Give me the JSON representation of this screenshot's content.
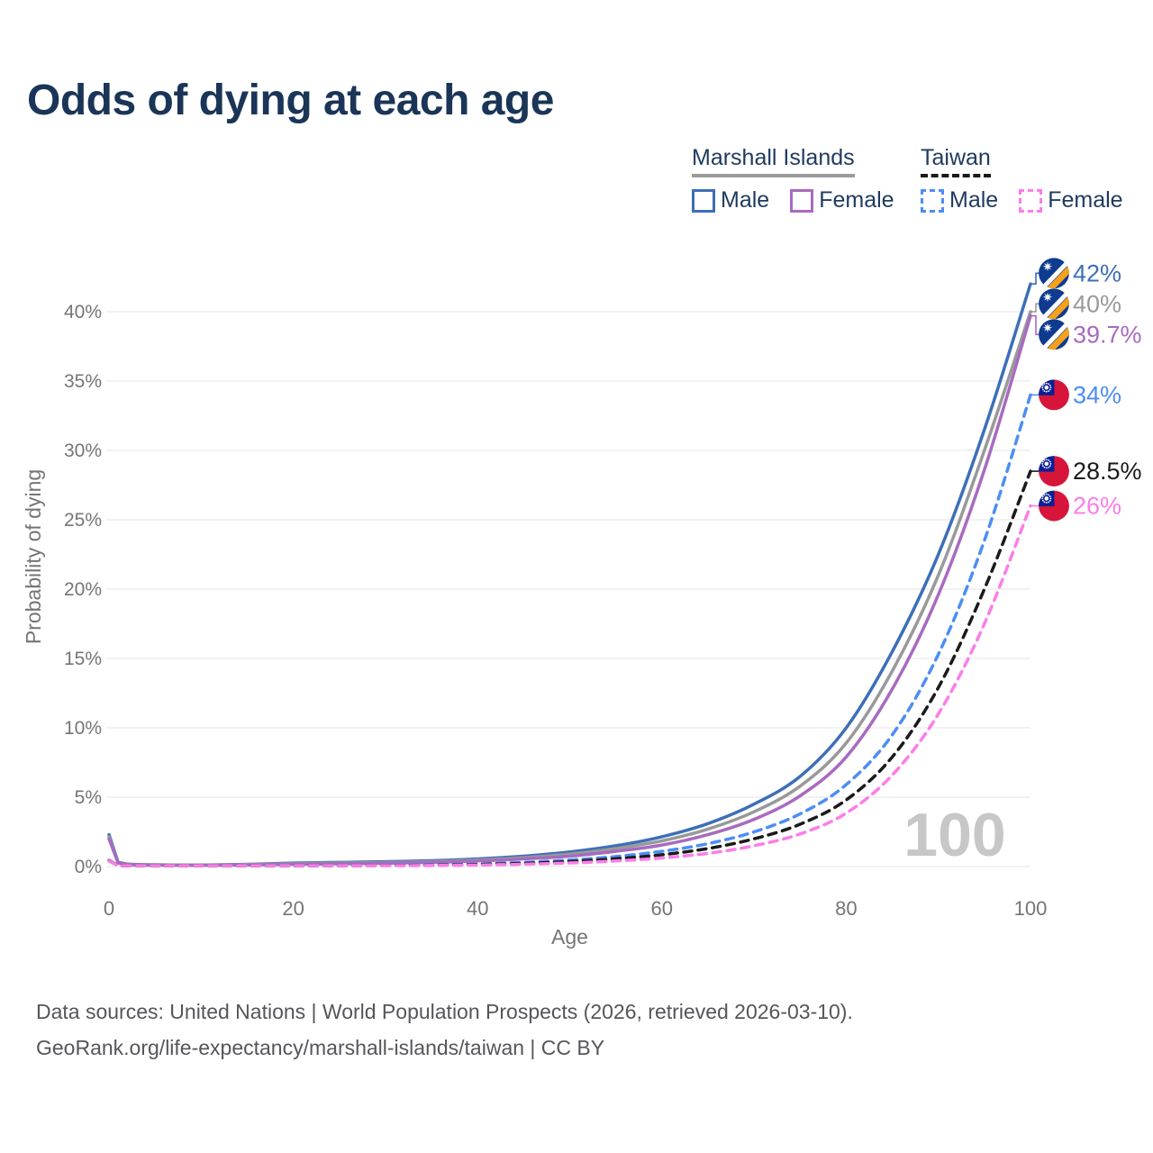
{
  "title": "Odds of dying at each age",
  "legend": {
    "marshall_islands": {
      "name": "Marshall Islands",
      "male": "Male",
      "female": "Female"
    },
    "taiwan": {
      "name": "Taiwan",
      "male": "Male",
      "female": "Female"
    }
  },
  "watermark_age": "100",
  "colors": {
    "title_text": "#1a3557",
    "legend_text": "#1f3a5f",
    "axis_text": "#757575",
    "grid": "#e9e9e9",
    "watermark": "#c7c7c7",
    "footer_text": "#55565a",
    "legend_underline_mi": "#9b9b9b",
    "legend_underline_tw": "#1a1a1a",
    "mh_flag_blue": "#0d3b8f",
    "mh_flag_orange": "#f5a11c",
    "tw_flag_red": "#d7153a",
    "tw_flag_blue": "#0a2096"
  },
  "chart_data": {
    "type": "line",
    "title": "Odds of dying at each age",
    "xlabel": "Age",
    "ylabel": "Probability of dying",
    "xlim": [
      0,
      100
    ],
    "ylim_pct": [
      0,
      43
    ],
    "x_ticks": [
      0,
      20,
      40,
      60,
      80,
      100
    ],
    "y_ticks_pct": [
      0,
      5,
      10,
      15,
      20,
      25,
      30,
      35,
      40
    ],
    "grid": true,
    "legend_position": "top-right",
    "x": [
      0,
      1,
      2,
      3,
      5,
      10,
      15,
      20,
      25,
      30,
      35,
      40,
      45,
      50,
      55,
      60,
      65,
      70,
      75,
      80,
      85,
      90,
      95,
      100
    ],
    "series": [
      {
        "id": "mi_male",
        "name": "Marshall Islands Male",
        "color": "#3d6fb8",
        "dash": false,
        "flag": "mh",
        "end_label": "42%",
        "values": [
          2.3,
          0.3,
          0.18,
          0.15,
          0.13,
          0.11,
          0.16,
          0.25,
          0.3,
          0.35,
          0.42,
          0.55,
          0.75,
          1.05,
          1.5,
          2.15,
          3.1,
          4.5,
          6.5,
          10.0,
          15.5,
          22.5,
          31.5,
          42.0
        ]
      },
      {
        "id": "mi_all",
        "name": "Marshall Islands",
        "color": "#999999",
        "dash": false,
        "flag": "mh",
        "end_label": "40%",
        "values": [
          2.15,
          0.27,
          0.16,
          0.13,
          0.11,
          0.1,
          0.14,
          0.2,
          0.25,
          0.29,
          0.36,
          0.47,
          0.64,
          0.9,
          1.3,
          1.85,
          2.7,
          3.95,
          5.8,
          8.9,
          14.1,
          21.0,
          30.0,
          40.0
        ]
      },
      {
        "id": "mi_female",
        "name": "Marshall Islands Female",
        "color": "#a86abf",
        "dash": false,
        "flag": "mh",
        "end_label": "39.7%",
        "values": [
          2.0,
          0.25,
          0.15,
          0.12,
          0.1,
          0.09,
          0.12,
          0.16,
          0.2,
          0.24,
          0.3,
          0.4,
          0.55,
          0.75,
          1.1,
          1.55,
          2.3,
          3.4,
          5.1,
          7.9,
          12.8,
          19.6,
          28.6,
          39.7
        ]
      },
      {
        "id": "tw_male",
        "name": "Taiwan Male",
        "color": "#4d8df5",
        "dash": true,
        "flag": "tw",
        "end_label": "34%",
        "values": [
          0.45,
          0.04,
          0.02,
          0.015,
          0.015,
          0.02,
          0.04,
          0.06,
          0.08,
          0.1,
          0.13,
          0.19,
          0.3,
          0.47,
          0.72,
          1.1,
          1.65,
          2.5,
          3.8,
          5.9,
          9.5,
          15.3,
          23.5,
          34.0
        ]
      },
      {
        "id": "tw_all",
        "name": "Taiwan",
        "color": "#1a1a1a",
        "dash": true,
        "flag": "tw",
        "end_label": "28.5%",
        "values": [
          0.42,
          0.035,
          0.018,
          0.013,
          0.012,
          0.017,
          0.03,
          0.045,
          0.06,
          0.075,
          0.1,
          0.15,
          0.23,
          0.36,
          0.56,
          0.85,
          1.3,
          2.0,
          3.05,
          4.8,
          7.9,
          12.9,
          20.0,
          28.5
        ]
      },
      {
        "id": "tw_female",
        "name": "Taiwan Female",
        "color": "#fc7de8",
        "dash": true,
        "flag": "tw",
        "end_label": "26%",
        "values": [
          0.4,
          0.03,
          0.015,
          0.01,
          0.01,
          0.013,
          0.02,
          0.03,
          0.04,
          0.055,
          0.075,
          0.11,
          0.17,
          0.26,
          0.4,
          0.62,
          0.95,
          1.5,
          2.35,
          3.85,
          6.6,
          11.0,
          17.5,
          26.0
        ]
      }
    ]
  },
  "footer": {
    "line1": "Data sources: United Nations | World Population Prospects (2026, retrieved 2026-03-10).",
    "line2": "GeoRank.org/life-expectancy/marshall-islands/taiwan | CC BY"
  }
}
